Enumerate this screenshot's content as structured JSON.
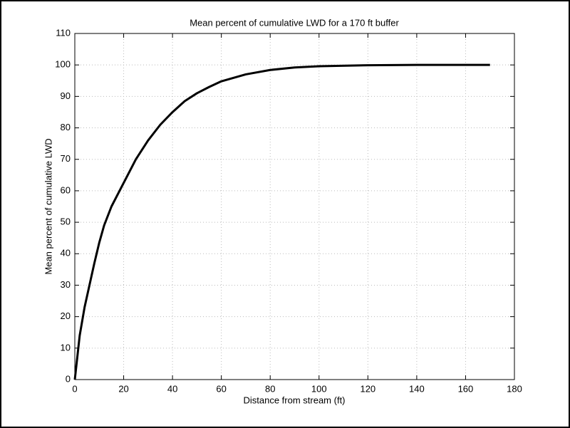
{
  "chart_data": {
    "type": "line",
    "title": "Mean percent of cumulative LWD for a 170 ft buffer",
    "xlabel": "Distance from stream (ft)",
    "ylabel": "Mean percent of cumulative LWD",
    "x": [
      0,
      1,
      2,
      4,
      6,
      8,
      10,
      12,
      15,
      20,
      25,
      30,
      35,
      40,
      45,
      50,
      55,
      60,
      70,
      80,
      90,
      100,
      120,
      140,
      170
    ],
    "series": [
      {
        "name": "Mean percent of cumulative LWD",
        "color": "#000000",
        "values": [
          0,
          7,
          14,
          23,
          30,
          37,
          43.5,
          49,
          55,
          62.5,
          70,
          76,
          81,
          85,
          88.5,
          91,
          93,
          94.8,
          97,
          98.4,
          99.2,
          99.6,
          99.9,
          100,
          100
        ]
      }
    ],
    "xlim": [
      0,
      180
    ],
    "xticks": [
      0,
      20,
      40,
      60,
      80,
      100,
      120,
      140,
      160,
      180
    ],
    "ylim": [
      0,
      110
    ],
    "yticks": [
      0,
      10,
      20,
      30,
      40,
      50,
      60,
      70,
      80,
      90,
      100,
      110
    ],
    "grid": true
  }
}
